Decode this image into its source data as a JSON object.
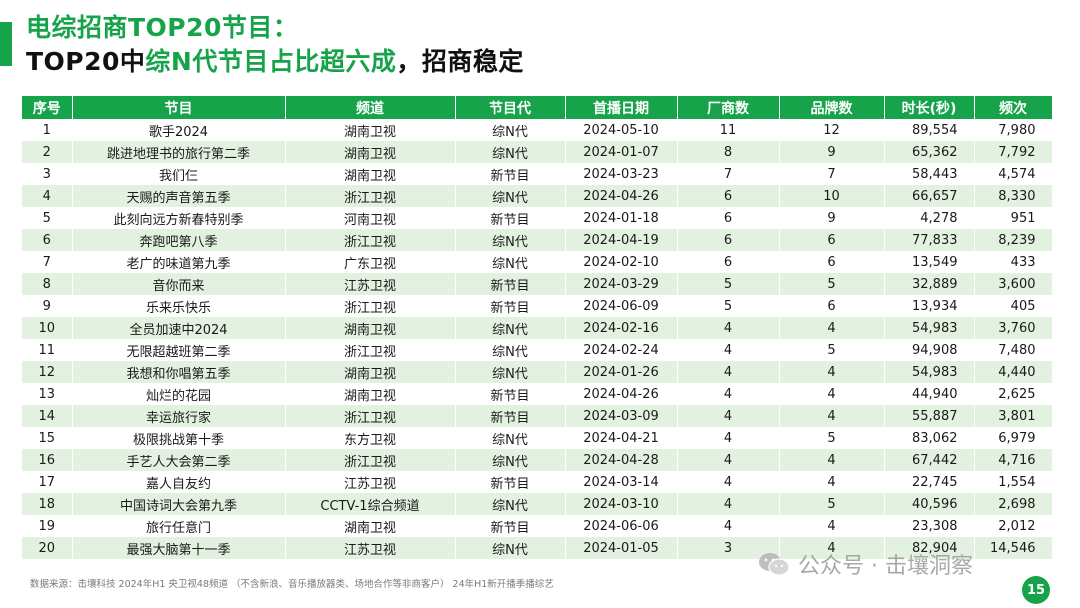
{
  "header": {
    "title_line1": "电综招商TOP20节目：",
    "title_line2_prefix": "TOP20中",
    "title_line2_highlight": "综N代节目占比超六成",
    "title_line2_suffix": "，招商稳定"
  },
  "table": {
    "columns": [
      "序号",
      "节目",
      "频道",
      "节目代",
      "首播日期",
      "厂商数",
      "品牌数",
      "时长(秒)",
      "频次"
    ],
    "rows": [
      [
        "1",
        "歌手2024",
        "湖南卫视",
        "综N代",
        "2024-05-10",
        "11",
        "12",
        "89,554",
        "7,980"
      ],
      [
        "2",
        "跳进地理书的旅行第二季",
        "湖南卫视",
        "综N代",
        "2024-01-07",
        "8",
        "9",
        "65,362",
        "7,792"
      ],
      [
        "3",
        "我们仨",
        "湖南卫视",
        "新节目",
        "2024-03-23",
        "7",
        "7",
        "58,443",
        "4,574"
      ],
      [
        "4",
        "天赐的声音第五季",
        "浙江卫视",
        "综N代",
        "2024-04-26",
        "6",
        "10",
        "66,657",
        "8,330"
      ],
      [
        "5",
        "此刻向远方新春特别季",
        "河南卫视",
        "新节目",
        "2024-01-18",
        "6",
        "9",
        "4,278",
        "951"
      ],
      [
        "6",
        "奔跑吧第八季",
        "浙江卫视",
        "综N代",
        "2024-04-19",
        "6",
        "6",
        "77,833",
        "8,239"
      ],
      [
        "7",
        "老广的味道第九季",
        "广东卫视",
        "综N代",
        "2024-02-10",
        "6",
        "6",
        "13,549",
        "433"
      ],
      [
        "8",
        "音你而来",
        "江苏卫视",
        "新节目",
        "2024-03-29",
        "5",
        "5",
        "32,889",
        "3,600"
      ],
      [
        "9",
        "乐来乐快乐",
        "浙江卫视",
        "新节目",
        "2024-06-09",
        "5",
        "6",
        "13,934",
        "405"
      ],
      [
        "10",
        "全员加速中2024",
        "湖南卫视",
        "综N代",
        "2024-02-16",
        "4",
        "4",
        "54,983",
        "3,760"
      ],
      [
        "11",
        "无限超越班第二季",
        "浙江卫视",
        "综N代",
        "2024-02-24",
        "4",
        "5",
        "94,908",
        "7,480"
      ],
      [
        "12",
        "我想和你唱第五季",
        "湖南卫视",
        "综N代",
        "2024-01-26",
        "4",
        "4",
        "54,983",
        "4,440"
      ],
      [
        "13",
        "灿烂的花园",
        "湖南卫视",
        "新节目",
        "2024-04-26",
        "4",
        "4",
        "44,940",
        "2,625"
      ],
      [
        "14",
        "幸运旅行家",
        "浙江卫视",
        "新节目",
        "2024-03-09",
        "4",
        "4",
        "55,887",
        "3,801"
      ],
      [
        "15",
        "极限挑战第十季",
        "东方卫视",
        "综N代",
        "2024-04-21",
        "4",
        "5",
        "83,062",
        "6,979"
      ],
      [
        "16",
        "手艺人大会第二季",
        "浙江卫视",
        "综N代",
        "2024-04-28",
        "4",
        "4",
        "67,442",
        "4,716"
      ],
      [
        "17",
        "嘉人自友约",
        "江苏卫视",
        "新节目",
        "2024-03-14",
        "4",
        "4",
        "22,745",
        "1,554"
      ],
      [
        "18",
        "中国诗词大会第九季",
        "CCTV-1综合频道",
        "综N代",
        "2024-03-10",
        "4",
        "5",
        "40,596",
        "2,698"
      ],
      [
        "19",
        "旅行任意门",
        "湖南卫视",
        "新节目",
        "2024-06-06",
        "4",
        "4",
        "23,308",
        "2,012"
      ],
      [
        "20",
        "最强大脑第十一季",
        "江苏卫视",
        "综N代",
        "2024-01-05",
        "3",
        "4",
        "82,904",
        "14,546"
      ]
    ]
  },
  "footer": {
    "source": "数据来源：击壤科技 2024年H1  央卫视48频道 （不含新浪、音乐播放器类、场地合作等非商客户） 24年H1新开播季播综艺"
  },
  "watermark": {
    "text": "公众号 · 击壤洞察",
    "icon": "wechat-icon"
  },
  "page_number": "15",
  "colors": {
    "accent": "#16a34a",
    "row_alt": "#e3f1e0"
  }
}
